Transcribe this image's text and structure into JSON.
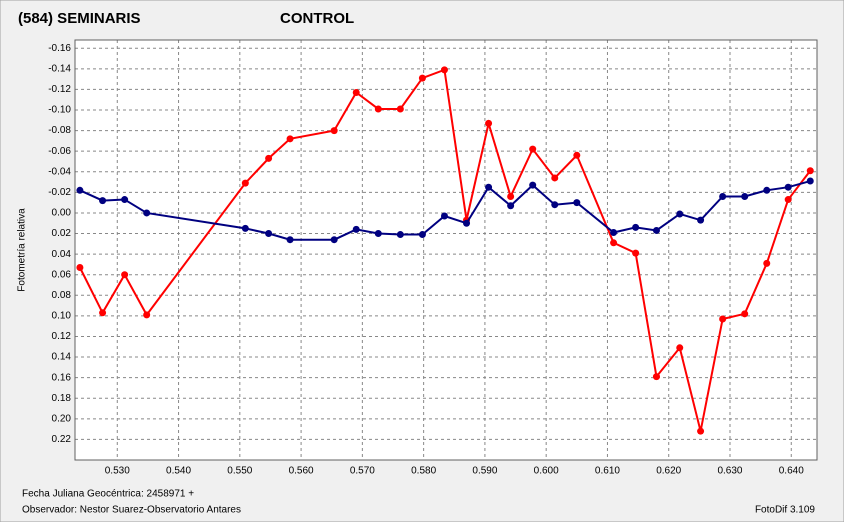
{
  "chart_data": {
    "type": "line",
    "y_label": "Fotometría relativa",
    "x_caption": "Fecha Juliana Geocéntrica: 2458971 +",
    "observer": "Observador: Nestor Suarez-Observatorio Antares",
    "software": "FotoDif 3.109",
    "y_inverted": true,
    "grid": true,
    "xlim": [
      0.5231,
      0.6442
    ],
    "ylim": [
      -0.168,
      0.24
    ],
    "xticks": [
      {
        "value": 0.53,
        "label": "0.530"
      },
      {
        "value": 0.54,
        "label": "0.540"
      },
      {
        "value": 0.55,
        "label": "0.550"
      },
      {
        "value": 0.56,
        "label": "0.560"
      },
      {
        "value": 0.57,
        "label": "0.570"
      },
      {
        "value": 0.58,
        "label": "0.580"
      },
      {
        "value": 0.59,
        "label": "0.590"
      },
      {
        "value": 0.6,
        "label": "0.600"
      },
      {
        "value": 0.61,
        "label": "0.610"
      },
      {
        "value": 0.62,
        "label": "0.620"
      },
      {
        "value": 0.63,
        "label": "0.630"
      },
      {
        "value": 0.64,
        "label": "0.640"
      }
    ],
    "yticks": [
      {
        "value": -0.16,
        "label": "-0.16"
      },
      {
        "value": -0.14,
        "label": "-0.14"
      },
      {
        "value": -0.12,
        "label": "-0.12"
      },
      {
        "value": -0.1,
        "label": "-0.10"
      },
      {
        "value": -0.08,
        "label": "-0.08"
      },
      {
        "value": -0.06,
        "label": "-0.06"
      },
      {
        "value": -0.04,
        "label": "-0.04"
      },
      {
        "value": -0.02,
        "label": "-0.02"
      },
      {
        "value": 0,
        "label": "0.00"
      },
      {
        "value": 0.02,
        "label": "0.02"
      },
      {
        "value": 0.04,
        "label": "0.04"
      },
      {
        "value": 0.06,
        "label": "0.06"
      },
      {
        "value": 0.08,
        "label": "0.08"
      },
      {
        "value": 0.1,
        "label": "0.10"
      },
      {
        "value": 0.12,
        "label": "0.12"
      },
      {
        "value": 0.14,
        "label": "0.14"
      },
      {
        "value": 0.16,
        "label": "0.16"
      },
      {
        "value": 0.18,
        "label": "0.18"
      },
      {
        "value": 0.2,
        "label": "0.20"
      },
      {
        "value": 0.22,
        "label": "0.22"
      }
    ],
    "x": [
      0.5239,
      0.5276,
      0.5312,
      0.5348,
      0.5509,
      0.5547,
      0.5582,
      0.5654,
      0.569,
      0.5726,
      0.5762,
      0.5798,
      0.5834,
      0.587,
      0.5906,
      0.5942,
      0.5978,
      0.6014,
      0.605,
      0.611,
      0.6146,
      0.618,
      0.6218,
      0.6252,
      0.6288,
      0.6324,
      0.636,
      0.6395,
      0.6431
    ],
    "series": [
      {
        "name": "(584) SEMINARIS",
        "color": "#ff0000",
        "values": [
          0.053,
          0.097,
          0.06,
          0.099,
          -0.029,
          -0.053,
          -0.072,
          -0.08,
          -0.117,
          -0.101,
          -0.101,
          -0.131,
          -0.139,
          0.007,
          -0.087,
          -0.016,
          -0.062,
          -0.034,
          -0.056,
          0.029,
          0.039,
          0.159,
          0.131,
          0.212,
          0.103,
          0.098,
          0.049,
          -0.013,
          -0.041
        ]
      },
      {
        "name": "CONTROL",
        "color": "#000080",
        "values": [
          -0.022,
          -0.012,
          -0.013,
          0.0,
          0.015,
          0.02,
          0.026,
          0.026,
          0.016,
          0.02,
          0.021,
          0.021,
          0.003,
          0.01,
          -0.025,
          -0.007,
          -0.027,
          -0.008,
          -0.01,
          0.019,
          0.014,
          0.017,
          0.001,
          0.007,
          -0.016,
          -0.016,
          -0.022,
          -0.025,
          -0.031
        ]
      }
    ]
  }
}
